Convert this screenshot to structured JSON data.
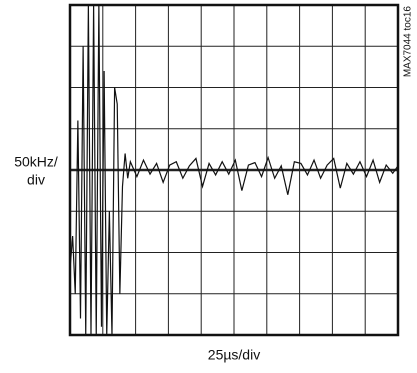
{
  "chart_data": {
    "type": "line",
    "y_label_lines": [
      "50kHz/",
      "div"
    ],
    "x_label": "25µs/div",
    "figure_id": "MAX7044 toc16",
    "x": [
      0,
      2,
      4,
      6,
      8,
      10,
      12,
      14,
      16,
      18,
      20,
      22,
      24,
      26,
      28,
      30,
      32,
      34,
      36,
      38,
      40,
      42,
      44,
      46,
      51,
      56,
      61,
      66,
      71,
      76,
      81,
      86,
      91,
      96,
      101,
      106,
      111,
      116,
      121,
      126,
      131,
      136,
      141,
      146,
      151,
      156,
      161,
      166,
      171,
      176,
      181,
      186,
      191,
      196,
      201,
      206,
      211,
      216,
      221,
      226,
      231,
      236,
      241,
      246,
      250
    ],
    "series": [
      {
        "color": "#111111",
        "values": [
          -120,
          -80,
          -150,
          60,
          -180,
          150,
          -200,
          200,
          -200,
          200,
          -200,
          200,
          -190,
          120,
          -200,
          -50,
          -200,
          100,
          80,
          -150,
          -20,
          20,
          -10,
          10,
          -8,
          12,
          -5,
          8,
          -15,
          6,
          10,
          -10,
          5,
          14,
          -20,
          8,
          -6,
          10,
          -5,
          12,
          -25,
          6,
          9,
          -8,
          15,
          -10,
          5,
          -30,
          10,
          8,
          -6,
          12,
          -10,
          6,
          14,
          -22,
          8,
          -5,
          10,
          -8,
          12,
          -15,
          6,
          -4,
          5
        ]
      }
    ],
    "xlim": [
      0,
      250
    ],
    "ylim": [
      -200,
      200
    ],
    "xticks": [
      0,
      25,
      50,
      75,
      100,
      125,
      150,
      175,
      200,
      225,
      250
    ],
    "yticks": [
      -200,
      -150,
      -100,
      -50,
      0,
      50,
      100,
      150,
      200
    ],
    "grid": true
  }
}
